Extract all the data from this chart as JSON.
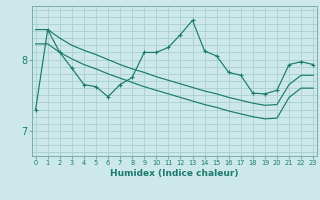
{
  "xlabel": "Humidex (Indice chaleur)",
  "background_color": "#cde8e8",
  "grid_color": "#aacfcf",
  "line_color": "#1a7a6e",
  "x_ticks": [
    0,
    1,
    2,
    3,
    4,
    5,
    6,
    7,
    8,
    9,
    10,
    11,
    12,
    13,
    14,
    15,
    16,
    17,
    18,
    19,
    20,
    21,
    22,
    23
  ],
  "y_ticks": [
    7,
    8
  ],
  "ylim": [
    6.65,
    8.75
  ],
  "xlim": [
    -0.3,
    23.3
  ],
  "upper_y": [
    8.42,
    8.42,
    8.3,
    8.2,
    8.13,
    8.07,
    8.0,
    7.93,
    7.87,
    7.82,
    7.76,
    7.71,
    7.66,
    7.61,
    7.56,
    7.52,
    7.47,
    7.43,
    7.39,
    7.36,
    7.37,
    7.65,
    7.78,
    7.78
  ],
  "lower_y": [
    8.22,
    8.22,
    8.1,
    8.01,
    7.93,
    7.87,
    7.8,
    7.74,
    7.68,
    7.62,
    7.57,
    7.52,
    7.47,
    7.42,
    7.37,
    7.33,
    7.28,
    7.24,
    7.2,
    7.17,
    7.18,
    7.47,
    7.6,
    7.6
  ],
  "noisy_x": [
    0,
    1,
    2,
    3,
    4,
    5,
    6,
    7,
    8,
    9,
    10,
    11,
    12,
    13,
    14,
    15,
    16,
    17,
    18,
    19,
    20,
    21,
    22,
    23
  ],
  "noisy_y": [
    7.3,
    8.42,
    8.1,
    7.88,
    7.65,
    7.62,
    7.48,
    7.65,
    7.75,
    8.1,
    8.1,
    8.17,
    8.35,
    8.55,
    8.12,
    8.05,
    7.82,
    7.78,
    7.53,
    7.52,
    7.57,
    7.93,
    7.97,
    7.93
  ]
}
